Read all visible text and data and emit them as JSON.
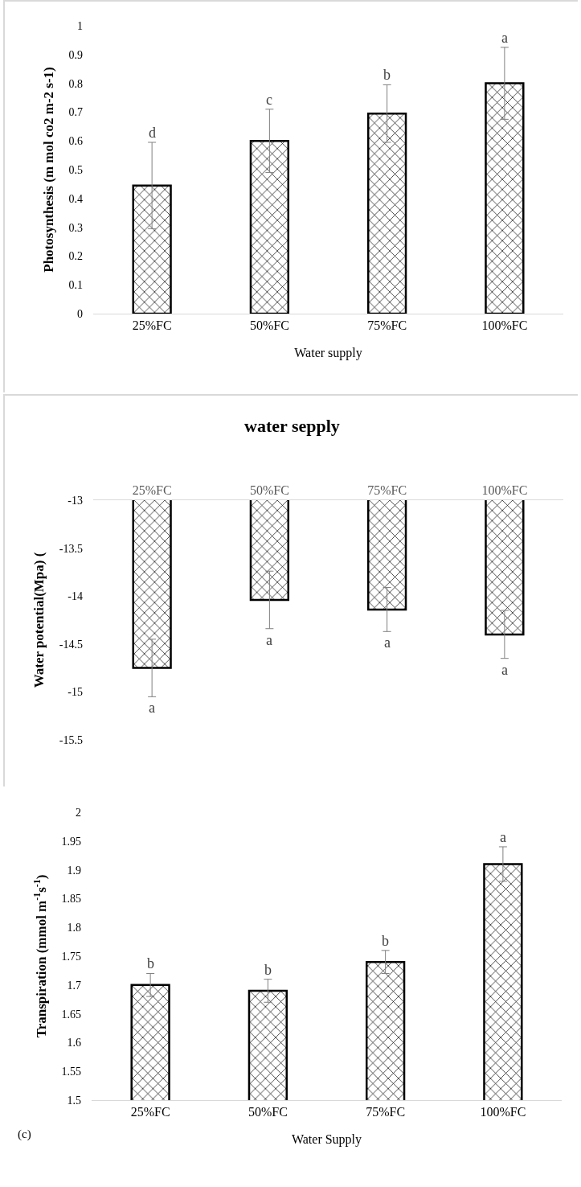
{
  "chart_data": [
    {
      "type": "bar",
      "ylabel": "Photosynthesis (m mol co2 m-2 s-1)",
      "xlabel": "Water supply",
      "categories": [
        "25%FC",
        "50%FC",
        "75%FC",
        "100%FC"
      ],
      "series": [
        {
          "color": "#000000",
          "values": [
            0.445,
            0.6,
            0.695,
            0.8
          ],
          "errors": [
            0.15,
            0.11,
            0.1,
            0.125
          ]
        }
      ],
      "ylim": [
        0,
        1
      ],
      "yticks": [
        0,
        0.1,
        0.2,
        0.3,
        0.4,
        0.5,
        0.6,
        0.7,
        0.8,
        0.9,
        1
      ],
      "annotations": [
        {
          "text": "d",
          "x": "25%FC",
          "y": 0.595
        },
        {
          "text": "c",
          "x": "50%FC",
          "y": 0.71
        },
        {
          "text": "b",
          "x": "75%FC",
          "y": 0.795
        },
        {
          "text": "a",
          "x": "100%FC",
          "y": 0.925
        }
      ]
    },
    {
      "type": "bar",
      "title": "water sepply",
      "ylabel": "Water potential(Mpa) (",
      "categories": [
        "25%FC",
        "50%FC",
        "75%FC",
        "100%FC"
      ],
      "series": [
        {
          "color": "#000000",
          "values": [
            -14.75,
            -14.04,
            -14.14,
            -14.4
          ],
          "errors": [
            0.3,
            0.3,
            0.23,
            0.25
          ]
        }
      ],
      "ylim": [
        -15.5,
        -13
      ],
      "yticks": [
        -15.5,
        -15,
        -14.5,
        -14,
        -13.5,
        -13
      ],
      "annotations": [
        {
          "text": "a",
          "x": "25%FC",
          "y": -15.05
        },
        {
          "text": "a",
          "x": "50%FC",
          "y": -14.34
        },
        {
          "text": "a",
          "x": "75%FC",
          "y": -14.37
        },
        {
          "text": "a",
          "x": "100%FC",
          "y": -14.65
        }
      ]
    },
    {
      "type": "bar",
      "ylabel": "Transpiration (mmol m$^{-1}$s$^{-1}$)",
      "xlabel": "Water Supply",
      "categories": [
        "25%FC",
        "50%FC",
        "75%FC",
        "100%FC"
      ],
      "series": [
        {
          "color": "#000000",
          "values": [
            1.7,
            1.69,
            1.74,
            1.91
          ],
          "errors": [
            0.02,
            0.02,
            0.02,
            0.03
          ]
        }
      ],
      "ylim": [
        1.5,
        2
      ],
      "yticks": [
        1.5,
        1.55,
        1.6,
        1.65,
        1.7,
        1.75,
        1.8,
        1.85,
        1.9,
        1.95,
        2
      ],
      "annotations": [
        {
          "text": "b",
          "x": "25%FC",
          "y": 1.72
        },
        {
          "text": "b",
          "x": "50%FC",
          "y": 1.71
        },
        {
          "text": "b",
          "x": "75%FC",
          "y": 1.76
        },
        {
          "text": "a",
          "x": "100%FC",
          "y": 1.94
        },
        "(c)"
      ]
    }
  ]
}
